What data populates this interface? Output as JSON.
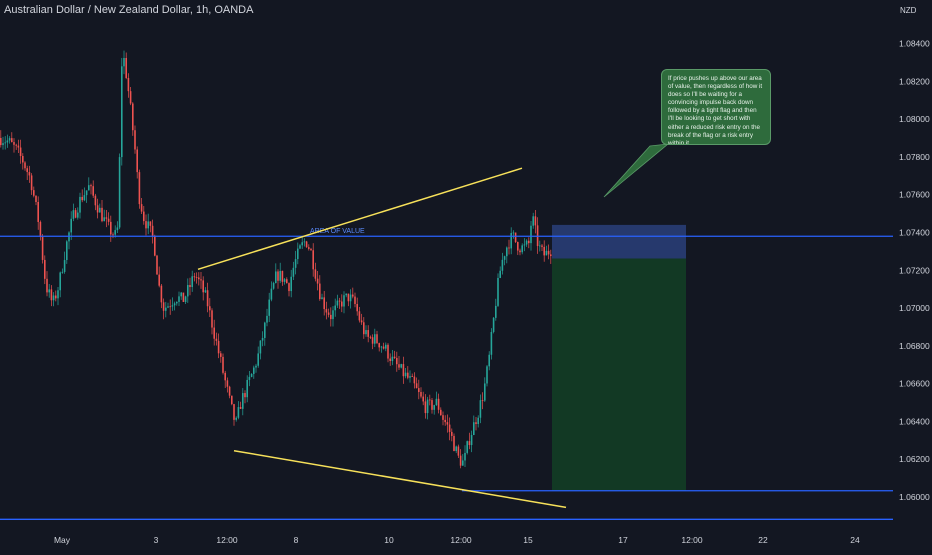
{
  "chart_data": {
    "type": "candlestick",
    "title": "Australian Dollar / New Zealand Dollar, 1h, OANDA",
    "currency": "NZD",
    "y_ticks": [
      "1.08400",
      "1.08200",
      "1.08000",
      "1.07800",
      "1.07600",
      "1.07400",
      "1.07200",
      "1.07000",
      "1.06800",
      "1.06600",
      "1.06400",
      "1.06200",
      "1.06000"
    ],
    "x_ticks": [
      "May",
      "3",
      "12:00",
      "8",
      "10",
      "12:00",
      "15",
      "17",
      "12:00",
      "22",
      "24"
    ],
    "ylim": [
      1.0589,
      1.0851
    ],
    "price_path": [
      [
        0,
        1.079
      ],
      [
        8,
        1.0788
      ],
      [
        15,
        1.0784
      ],
      [
        22,
        1.0778
      ],
      [
        30,
        1.0768
      ],
      [
        38,
        1.0745
      ],
      [
        45,
        1.0712
      ],
      [
        52,
        1.0702
      ],
      [
        58,
        1.0712
      ],
      [
        65,
        1.0732
      ],
      [
        72,
        1.0748
      ],
      [
        80,
        1.0758
      ],
      [
        88,
        1.0764
      ],
      [
        95,
        1.0756
      ],
      [
        102,
        1.0748
      ],
      [
        108,
        1.0742
      ],
      [
        115,
        1.0738
      ],
      [
        118,
        1.0745
      ],
      [
        120,
        1.0828
      ],
      [
        123,
        1.0832
      ],
      [
        126,
        1.0822
      ],
      [
        130,
        1.0804
      ],
      [
        134,
        1.0785
      ],
      [
        138,
        1.076
      ],
      [
        143,
        1.0748
      ],
      [
        148,
        1.0742
      ],
      [
        153,
        1.0736
      ],
      [
        158,
        1.0712
      ],
      [
        163,
        1.07
      ],
      [
        168,
        1.0702
      ],
      [
        175,
        1.0706
      ],
      [
        182,
        1.0704
      ],
      [
        188,
        1.071
      ],
      [
        194,
        1.0718
      ],
      [
        200,
        1.0712
      ],
      [
        206,
        1.0704
      ],
      [
        212,
        1.069
      ],
      [
        218,
        1.0676
      ],
      [
        224,
        1.0662
      ],
      [
        230,
        1.0648
      ],
      [
        235,
        1.0638
      ],
      [
        240,
        1.065
      ],
      [
        246,
        1.0658
      ],
      [
        252,
        1.0666
      ],
      [
        258,
        1.0676
      ],
      [
        264,
        1.069
      ],
      [
        270,
        1.0706
      ],
      [
        276,
        1.0718
      ],
      [
        282,
        1.0716
      ],
      [
        288,
        1.0712
      ],
      [
        294,
        1.0724
      ],
      [
        300,
        1.0732
      ],
      [
        305,
        1.0736
      ],
      [
        310,
        1.073
      ],
      [
        315,
        1.0718
      ],
      [
        320,
        1.0706
      ],
      [
        325,
        1.07
      ],
      [
        330,
        1.0696
      ],
      [
        336,
        1.07
      ],
      [
        342,
        1.0704
      ],
      [
        348,
        1.0706
      ],
      [
        354,
        1.0702
      ],
      [
        360,
        1.0692
      ],
      [
        366,
        1.0684
      ],
      [
        372,
        1.0684
      ],
      [
        378,
        1.0682
      ],
      [
        385,
        1.0678
      ],
      [
        392,
        1.0672
      ],
      [
        398,
        1.0668
      ],
      [
        405,
        1.0664
      ],
      [
        412,
        1.066
      ],
      [
        418,
        1.0654
      ],
      [
        424,
        1.0648
      ],
      [
        430,
        1.0648
      ],
      [
        436,
        1.065
      ],
      [
        442,
        1.0642
      ],
      [
        448,
        1.0636
      ],
      [
        453,
        1.0628
      ],
      [
        458,
        1.062
      ],
      [
        463,
        1.0618
      ],
      [
        468,
        1.063
      ],
      [
        473,
        1.0638
      ],
      [
        478,
        1.0646
      ],
      [
        483,
        1.0656
      ],
      [
        488,
        1.0672
      ],
      [
        492,
        1.069
      ],
      [
        496,
        1.0708
      ],
      [
        500,
        1.0722
      ],
      [
        504,
        1.073
      ],
      [
        508,
        1.0735
      ],
      [
        512,
        1.0738
      ],
      [
        516,
        1.0734
      ],
      [
        520,
        1.0732
      ],
      [
        524,
        1.0732
      ],
      [
        528,
        1.0734
      ],
      [
        531,
        1.0748
      ],
      [
        533,
        1.0745
      ],
      [
        536,
        1.0736
      ],
      [
        540,
        1.073
      ],
      [
        544,
        1.0728
      ],
      [
        548,
        1.073
      ],
      [
        552,
        1.0732
      ]
    ],
    "annotations": {
      "label": "AREA OF VALUE",
      "horizontal_lines": [
        1.0738,
        1.06033,
        1.05882
      ],
      "upper_trendline": [
        [
          198,
          1.07205
        ],
        [
          522,
          1.0774
        ]
      ],
      "lower_trendline": [
        [
          234,
          1.06245
        ],
        [
          566,
          1.05945
        ]
      ],
      "short_position": {
        "x_start": 552,
        "x_end": 686,
        "entry": 1.07262,
        "stop": 1.0744,
        "target": 1.06033
      },
      "callout_text": "If price pushes up above our area of value, then regardless of how it does so I'll be waiting for a convincing impulse back down followed by a tight flag and then I'll be looking to get short with either a reduced risk entry on the break of the flag or a risk entry within it."
    },
    "colors": {
      "background": "#131722",
      "bull": "#26a69a",
      "bear": "#ef5350",
      "trendline": "#f7e15a",
      "level": "#2962ff",
      "stop_zone": "#2a3f7a",
      "target_zone": "#123b25",
      "callout": "#2e6b3c"
    }
  }
}
